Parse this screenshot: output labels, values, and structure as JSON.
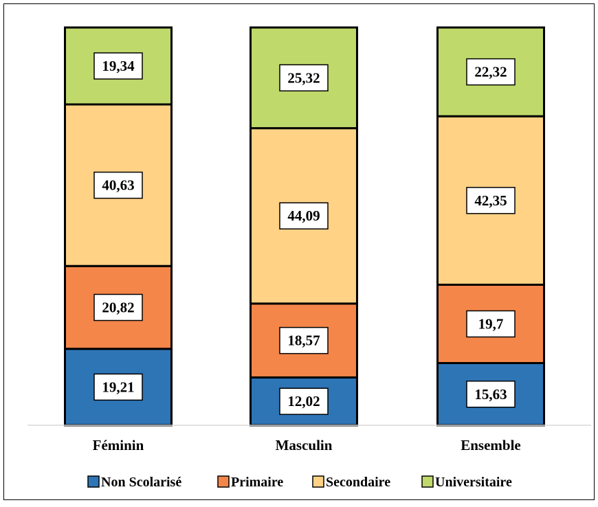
{
  "chart_data": {
    "type": "bar",
    "stacked": true,
    "categories": [
      "Féminin",
      "Masculin",
      "Ensemble"
    ],
    "series": [
      {
        "name": "Non Scolarisé",
        "values": [
          19.21,
          12.02,
          15.63
        ],
        "labels": [
          "19,21",
          "12,02",
          "15,63"
        ],
        "color": "#2E75B6"
      },
      {
        "name": "Primaire",
        "values": [
          20.82,
          18.57,
          19.7
        ],
        "labels": [
          "20,82",
          "18,57",
          "19,7"
        ],
        "color": "#F4864A"
      },
      {
        "name": "Secondaire",
        "values": [
          40.63,
          44.09,
          42.35
        ],
        "labels": [
          "40,63",
          "44,09",
          "42,35"
        ],
        "color": "#FFD286"
      },
      {
        "name": "Universitaire",
        "values": [
          19.34,
          25.32,
          22.32
        ],
        "labels": [
          "19,34",
          "25,32",
          "22,32"
        ],
        "color": "#BFD96B"
      }
    ],
    "ylim": [
      0,
      100
    ],
    "grid": false,
    "legend_position": "bottom"
  }
}
